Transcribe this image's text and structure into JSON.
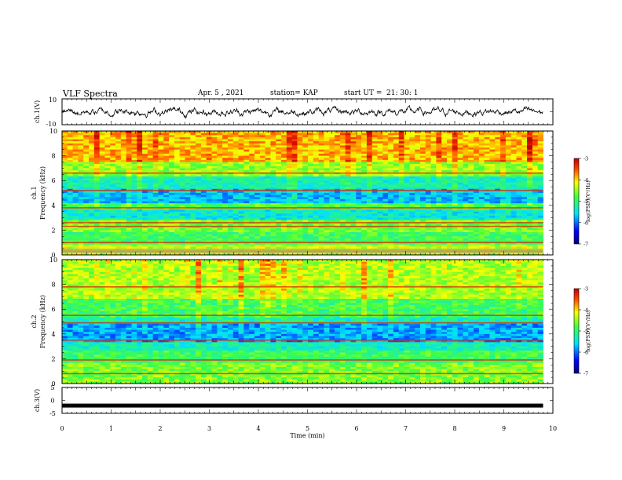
{
  "header": {
    "title": "VLF Spectra",
    "date": "Apr. 5 , 2021",
    "station": "station= KAP",
    "start_ut_label": "start UT =",
    "start_ut_time": "21: 30: 1"
  },
  "chart_data": [
    {
      "type": "line",
      "panel": "ch1-voltage",
      "ylabel": "ch.1(V)",
      "ylim": [
        -10,
        10
      ],
      "yticks": [
        "10",
        "-10"
      ],
      "xlim": [
        0,
        10
      ],
      "series": [
        {
          "description_values_range": [
            -5,
            5
          ],
          "values": "noise"
        }
      ]
    },
    {
      "type": "heatmap",
      "panel": "ch1-spectrogram",
      "ylabel_top": "ch.1",
      "ylabel": "Frequency (kHz)",
      "ylim": [
        0,
        10
      ],
      "yticks": [
        "0",
        "2",
        "4",
        "6",
        "8",
        "10"
      ],
      "xlim": [
        0,
        9.8
      ],
      "colorbar": {
        "label": "log(PSD)(V²/Hz)",
        "range": [
          -7,
          -3
        ],
        "ticks": [
          "-3",
          "-4",
          "-5",
          "-6",
          "-7"
        ]
      }
    },
    {
      "type": "heatmap",
      "panel": "ch2-spectrogram",
      "ylabel_top": "ch.2",
      "ylabel": "Frequency (kHz)",
      "ylim": [
        0,
        10
      ],
      "yticks": [
        "0",
        "2",
        "4",
        "6",
        "8",
        "10"
      ],
      "xlim": [
        0,
        9.8
      ],
      "colorbar": {
        "label": "log(PSD)(V²/Hz)",
        "range": [
          -7,
          -3
        ],
        "ticks": [
          "-3",
          "-4",
          "-5",
          "-6",
          "-7"
        ]
      }
    },
    {
      "type": "line",
      "panel": "ch3-voltage",
      "ylabel": "ch.3(V)",
      "ylim": [
        -5,
        5
      ],
      "yticks": [
        "5",
        "0",
        "-5"
      ],
      "xlim": [
        0,
        10
      ],
      "series": [
        {
          "values_constant": -2
        }
      ]
    }
  ],
  "xaxis": {
    "label": "Time (min)",
    "ticks": [
      "0",
      "1",
      "2",
      "3",
      "4",
      "5",
      "6",
      "7",
      "8",
      "9",
      "10"
    ]
  },
  "colors": {
    "axis": "#000000",
    "trace": "#000000",
    "background": "#ffffff"
  }
}
